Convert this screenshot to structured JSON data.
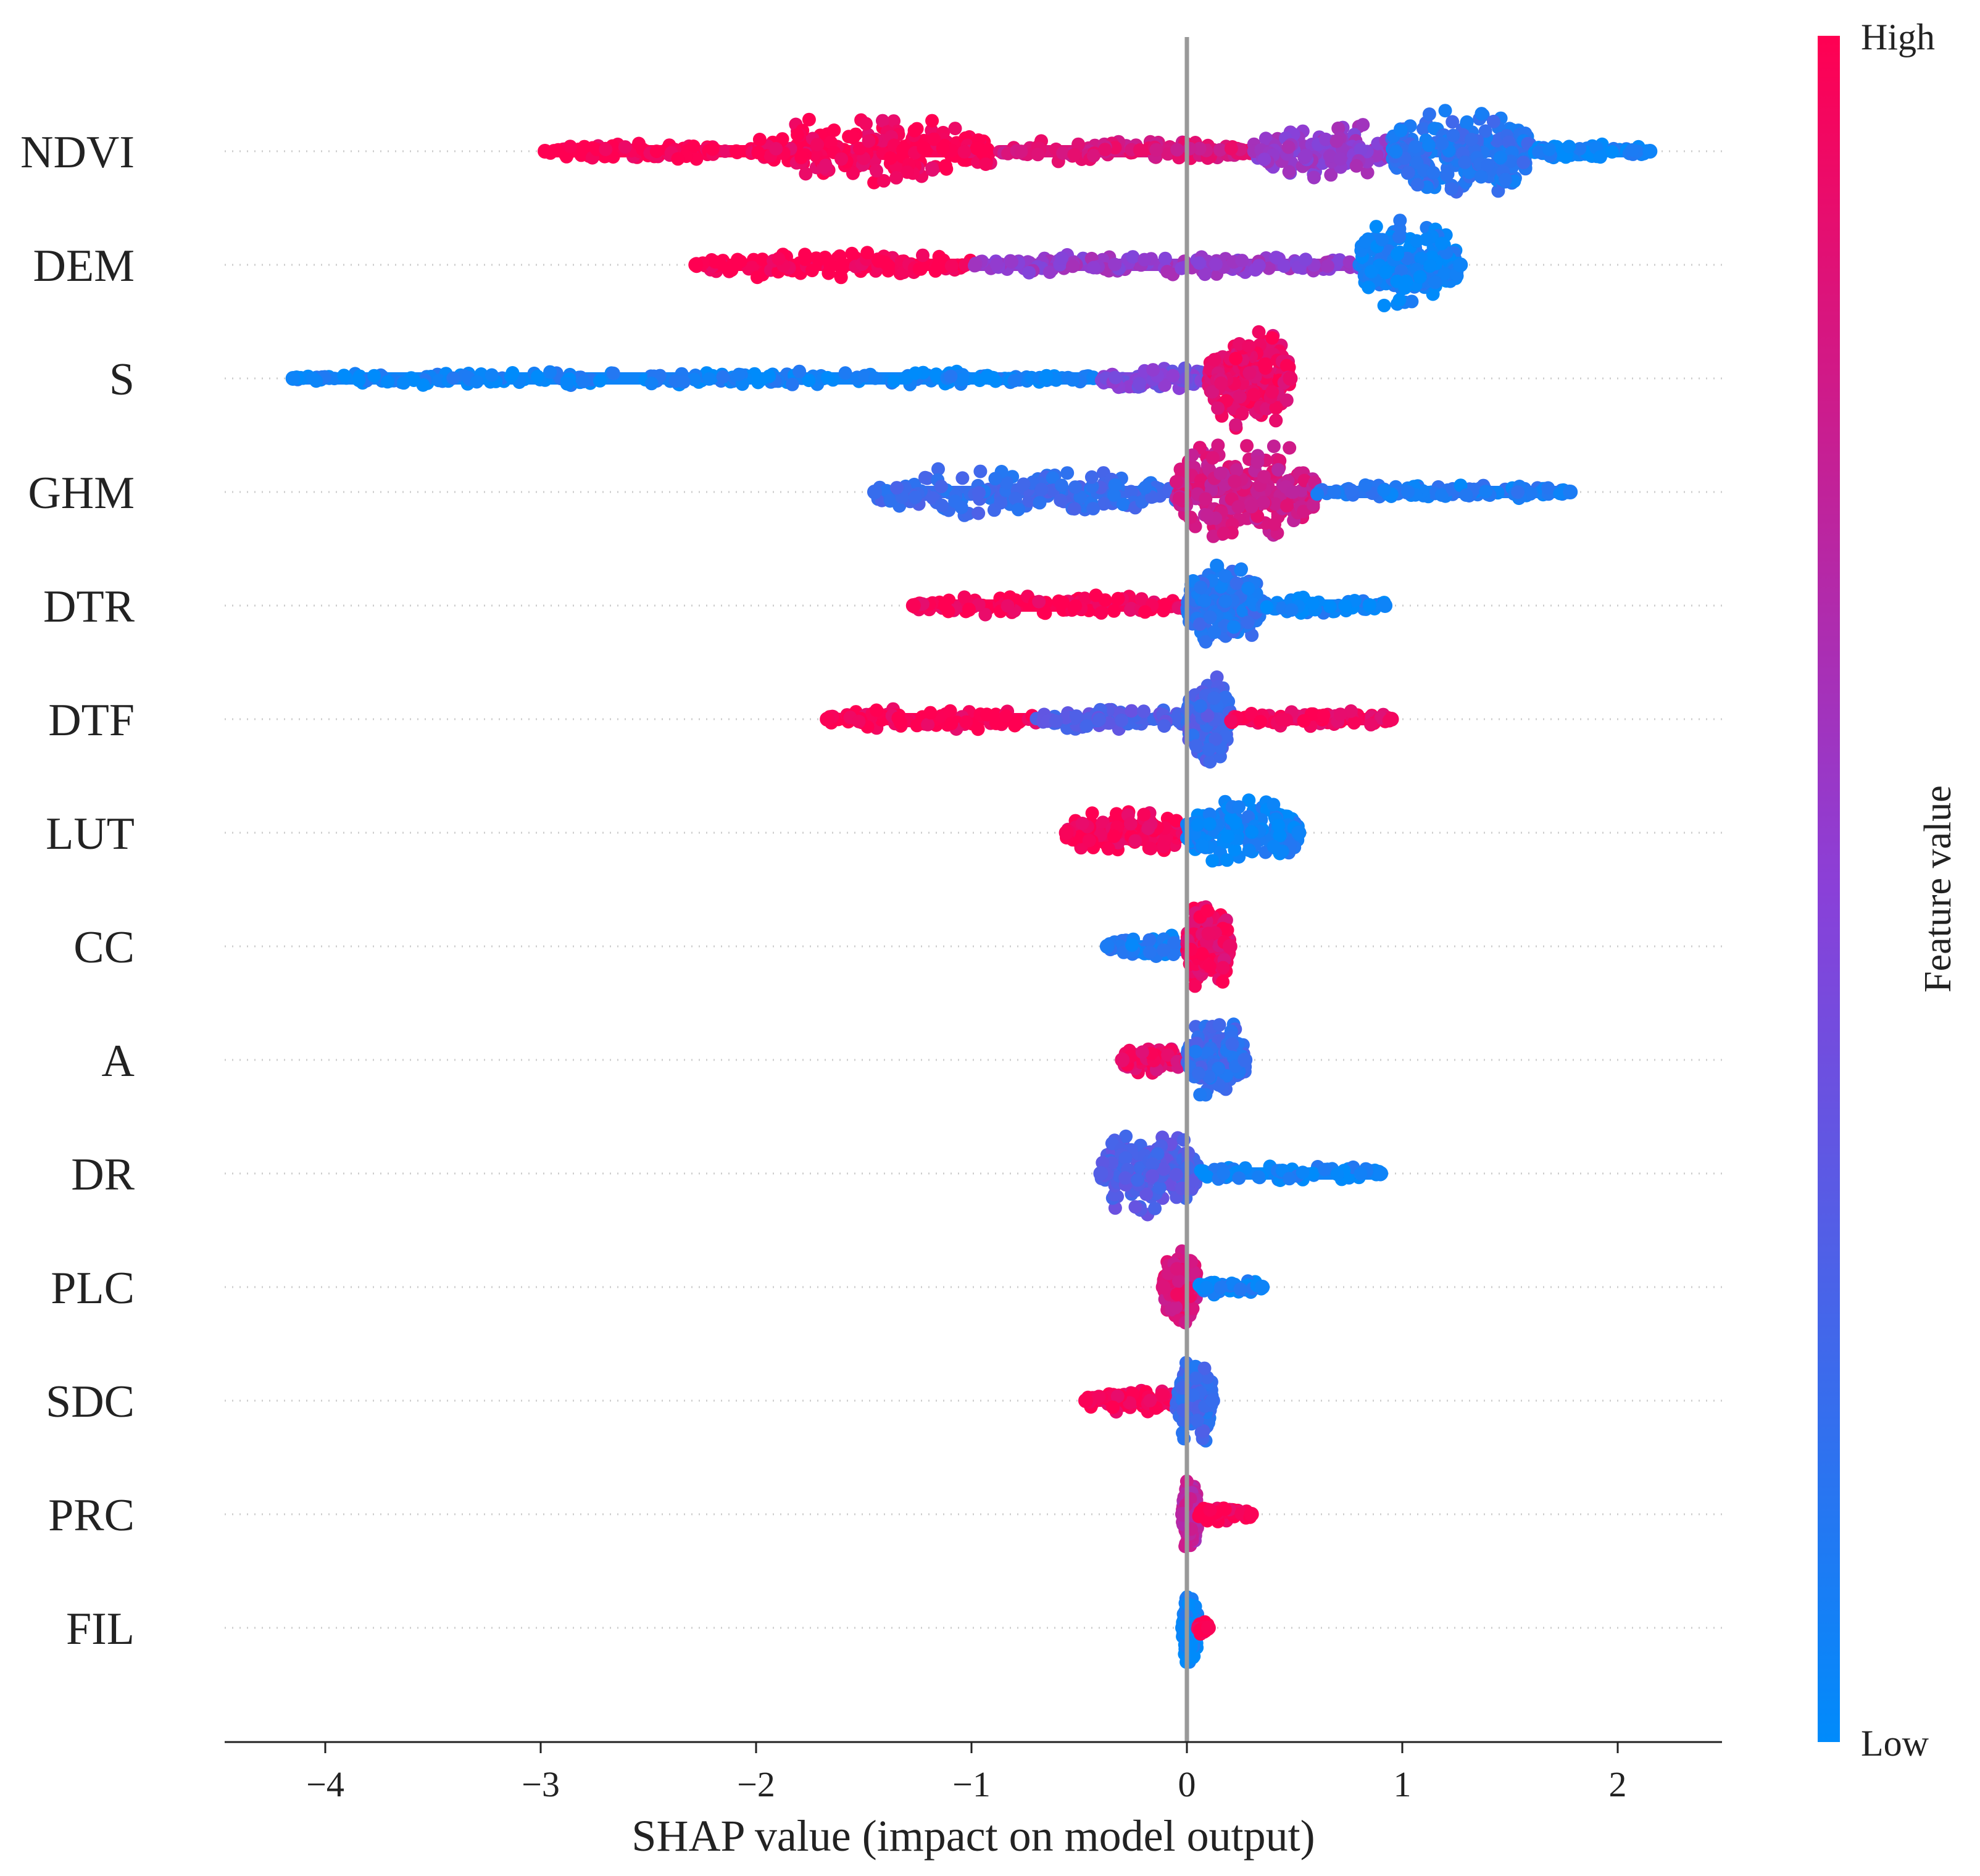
{
  "chart_data": {
    "type": "scatter",
    "subtype": "shap-beeswarm",
    "title": "",
    "xlabel": "SHAP value (impact on model output)",
    "xlim": [
      -4.5,
      2.5
    ],
    "xticks": [
      -4,
      -3,
      -2,
      -1,
      0,
      1,
      2
    ],
    "xtick_labels": [
      "−4",
      "−3",
      "−2",
      "−1",
      "0",
      "1",
      "2"
    ],
    "zero_line": 0,
    "colorbar": {
      "title": "Feature value",
      "high_label": "High",
      "low_label": "Low",
      "high_color": "#ff0052",
      "mid_color": "#8a40d8",
      "low_color": "#008bfb"
    },
    "features": [
      {
        "name": "NDVI",
        "min": -2.98,
        "max": 2.15,
        "segments": [
          {
            "from": -2.98,
            "to": -2.0,
            "color": 1.0,
            "width": 0.08
          },
          {
            "from": -2.0,
            "to": -0.9,
            "color": 0.97,
            "width": 0.3
          },
          {
            "from": -0.9,
            "to": 0.3,
            "color": 0.85,
            "width": 0.1
          },
          {
            "from": 0.3,
            "to": 0.95,
            "color": 0.55,
            "width": 0.25
          },
          {
            "from": 0.95,
            "to": 1.6,
            "color": 0.15,
            "width": 0.42
          },
          {
            "from": 1.6,
            "to": 2.15,
            "color": 0.05,
            "width": 0.07
          }
        ]
      },
      {
        "name": "DEM",
        "min": -2.28,
        "max": 1.27,
        "segments": [
          {
            "from": -2.28,
            "to": -1.0,
            "color": 1.0,
            "width": 0.12
          },
          {
            "from": -1.0,
            "to": 0.8,
            "color": 0.55,
            "width": 0.1
          },
          {
            "from": 0.8,
            "to": 1.27,
            "color": 0.05,
            "width": 0.4
          }
        ]
      },
      {
        "name": "S",
        "min": -4.15,
        "max": 0.48,
        "segments": [
          {
            "from": -4.15,
            "to": -0.4,
            "color": 0.05,
            "width": 0.07
          },
          {
            "from": -0.4,
            "to": 0.1,
            "color": 0.45,
            "width": 0.1
          },
          {
            "from": 0.1,
            "to": 0.48,
            "color": 0.92,
            "width": 0.45
          }
        ]
      },
      {
        "name": "GHM",
        "min": -1.45,
        "max": 1.78,
        "segments": [
          {
            "from": -1.45,
            "to": -0.05,
            "color": 0.2,
            "width": 0.22
          },
          {
            "from": -0.05,
            "to": 0.6,
            "color": 0.8,
            "width": 0.45
          },
          {
            "from": 0.6,
            "to": 1.78,
            "color": 0.1,
            "width": 0.07
          }
        ]
      },
      {
        "name": "DTR",
        "min": -1.27,
        "max": 0.92,
        "segments": [
          {
            "from": -1.27,
            "to": 0.0,
            "color": 0.98,
            "width": 0.1
          },
          {
            "from": 0.0,
            "to": 0.35,
            "color": 0.15,
            "width": 0.4
          },
          {
            "from": 0.35,
            "to": 0.92,
            "color": 0.05,
            "width": 0.08
          }
        ]
      },
      {
        "name": "DTF",
        "min": -1.67,
        "max": 0.95,
        "segments": [
          {
            "from": -1.67,
            "to": -0.7,
            "color": 0.98,
            "width": 0.1
          },
          {
            "from": -0.7,
            "to": 0.0,
            "color": 0.3,
            "width": 0.1
          },
          {
            "from": 0.0,
            "to": 0.2,
            "color": 0.25,
            "width": 0.42
          },
          {
            "from": 0.2,
            "to": 0.95,
            "color": 0.95,
            "width": 0.08
          }
        ]
      },
      {
        "name": "LUT",
        "min": -0.56,
        "max": 0.52,
        "segments": [
          {
            "from": -0.56,
            "to": 0.0,
            "color": 0.97,
            "width": 0.2
          },
          {
            "from": 0.0,
            "to": 0.52,
            "color": 0.05,
            "width": 0.3
          }
        ]
      },
      {
        "name": "CC",
        "min": -0.37,
        "max": 0.2,
        "segments": [
          {
            "from": -0.37,
            "to": 0.0,
            "color": 0.1,
            "width": 0.1
          },
          {
            "from": 0.0,
            "to": 0.2,
            "color": 0.92,
            "width": 0.4
          }
        ]
      },
      {
        "name": "A",
        "min": -0.3,
        "max": 0.27,
        "segments": [
          {
            "from": -0.3,
            "to": 0.0,
            "color": 0.9,
            "width": 0.15
          },
          {
            "from": 0.0,
            "to": 0.27,
            "color": 0.2,
            "width": 0.35
          }
        ]
      },
      {
        "name": "DR",
        "min": -0.4,
        "max": 0.9,
        "segments": [
          {
            "from": -0.4,
            "to": 0.05,
            "color": 0.3,
            "width": 0.38
          },
          {
            "from": 0.05,
            "to": 0.9,
            "color": 0.05,
            "width": 0.08
          }
        ]
      },
      {
        "name": "PLC",
        "min": -0.11,
        "max": 0.35,
        "segments": [
          {
            "from": -0.11,
            "to": 0.05,
            "color": 0.85,
            "width": 0.35
          },
          {
            "from": 0.05,
            "to": 0.35,
            "color": 0.05,
            "width": 0.08
          }
        ]
      },
      {
        "name": "SDC",
        "min": -0.47,
        "max": 0.12,
        "segments": [
          {
            "from": -0.47,
            "to": -0.05,
            "color": 0.98,
            "width": 0.12
          },
          {
            "from": -0.05,
            "to": 0.12,
            "color": 0.2,
            "width": 0.38
          }
        ]
      },
      {
        "name": "PRC",
        "min": -0.02,
        "max": 0.3,
        "segments": [
          {
            "from": -0.02,
            "to": 0.05,
            "color": 0.7,
            "width": 0.35
          },
          {
            "from": 0.05,
            "to": 0.3,
            "color": 0.98,
            "width": 0.08
          }
        ]
      },
      {
        "name": "FIL",
        "min": -0.02,
        "max": 0.1,
        "segments": [
          {
            "from": -0.02,
            "to": 0.05,
            "color": 0.03,
            "width": 0.35
          },
          {
            "from": 0.05,
            "to": 0.1,
            "color": 0.98,
            "width": 0.06
          }
        ]
      }
    ]
  }
}
